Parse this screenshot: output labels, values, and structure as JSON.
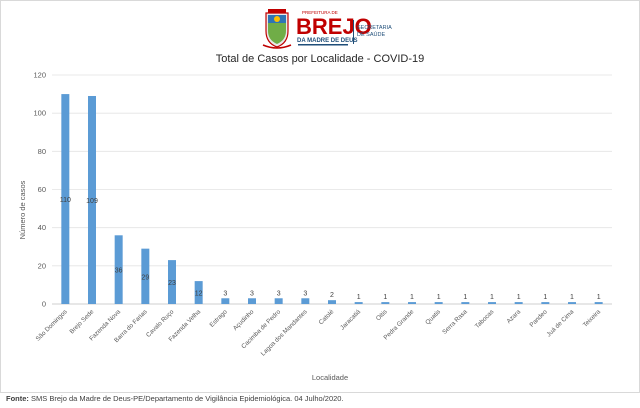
{
  "logo": {
    "top_text": "PREFEITURA DE",
    "name": "BREJO",
    "sub": "DA MADRE DE DEUS",
    "side_line1": "SECRETARIA",
    "side_line2": "DE SAÚDE"
  },
  "source": {
    "label": "Fonte:",
    "text": "SMS Brejo da Madre de Deus-PE/Departamento de Vigilância Epidemiológica. 04 Julho/2020."
  },
  "chart_data": {
    "type": "bar",
    "title": "Total de Casos por Localidade - COVID-19",
    "xlabel": "Localidade",
    "ylabel": "Número de casos",
    "ylim": [
      0,
      120
    ],
    "yticks": [
      0,
      20,
      40,
      60,
      80,
      100,
      120
    ],
    "grid": true,
    "bar_color": "#5b9bd5",
    "categories": [
      "São Domingos",
      "Brejo Sede",
      "Fazenda Nova",
      "Barra do Farias",
      "Cavalo Ruço",
      "Fazenda Velha",
      "Estrago",
      "Açudinho",
      "Cacimba de Pedro",
      "Lagoa dos Mandantes",
      "Catolé",
      "Jaracatiá",
      "Oitis",
      "Pedra Grande",
      "Quatis",
      "Serra Rasa",
      "Tabocas",
      "Azara",
      "Pandeo",
      "Juá de Cima",
      "Teixeira"
    ],
    "values": [
      110,
      109,
      36,
      29,
      23,
      12,
      3,
      3,
      3,
      3,
      2,
      1,
      1,
      1,
      1,
      1,
      1,
      1,
      1,
      1,
      1
    ]
  }
}
